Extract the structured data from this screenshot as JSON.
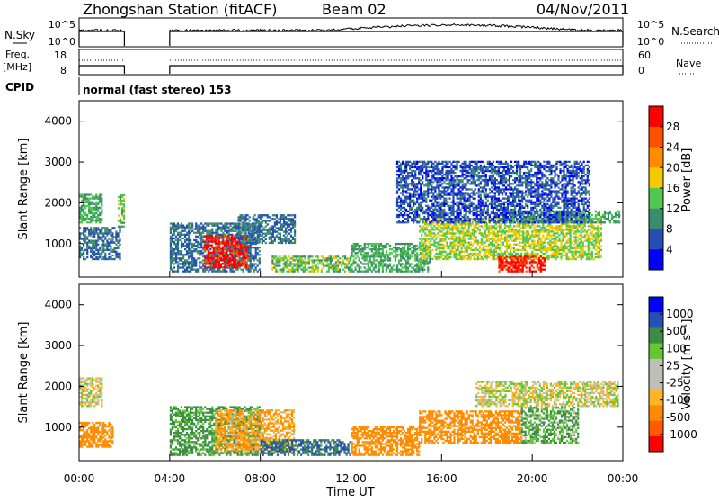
{
  "header": {
    "station": "Zhongshan Station (fitACF)",
    "beam": "Beam 02",
    "date": "04/Nov/2011",
    "cpid_label": "CPID",
    "cpid_text": "normal (fast stereo) 153"
  },
  "top_panels": {
    "nsky_label": "N.Sky",
    "nsky_ticks": [
      "10^5",
      "10^0"
    ],
    "nsearch_label": "N.Search",
    "nsearch_ticks": [
      "10^5",
      "10^0"
    ],
    "freq_label_line1": "Freq.",
    "freq_label_line2": "[MHz]",
    "freq_ticks": [
      "18",
      "8"
    ],
    "nave_label": "Nave",
    "nave_ticks": [
      "60",
      "0"
    ],
    "operating_intervals_hours": [
      [
        0.0,
        2.0
      ],
      [
        4.0,
        24.0
      ]
    ]
  },
  "colors": {
    "power_scale": [
      "#0000ff",
      "#2850b4",
      "#3c8c6e",
      "#50c850",
      "#f5c800",
      "#ff8c00",
      "#ff5000",
      "#ff0000"
    ],
    "velocity_scale": [
      "#ff0000",
      "#ff5a00",
      "#ff8c00",
      "#ffb428",
      "#bebeb4",
      "#bebeb4",
      "#64c832",
      "#3c8c46",
      "#2850b4",
      "#0000ff"
    ],
    "ground_scatter": "#bebeb4"
  },
  "chart_data": [
    {
      "type": "heatmap",
      "name": "power",
      "ylabel": "Slant Range [km]",
      "ylim": [
        180,
        4500
      ],
      "yticks": [
        "4000",
        "3000",
        "2000",
        "1000"
      ],
      "xlim_hours": [
        0,
        24
      ],
      "colorbar_label": "Power [dB]",
      "colorbar_ticks": [
        "28",
        "24",
        "20",
        "16",
        "12",
        "8",
        "4"
      ],
      "colorbar_range": [
        0,
        32
      ],
      "regions": [
        {
          "x": [
            0.0,
            1.0
          ],
          "y": [
            1500,
            2200
          ],
          "v": 12
        },
        {
          "x": [
            1.7,
            2.0
          ],
          "y": [
            1400,
            2200
          ],
          "v": 14
        },
        {
          "x": [
            0.0,
            1.8
          ],
          "y": [
            600,
            1400
          ],
          "v": 8
        },
        {
          "x": [
            4.0,
            8.0
          ],
          "y": [
            300,
            1500
          ],
          "v": 8
        },
        {
          "x": [
            5.5,
            7.5
          ],
          "y": [
            400,
            1200
          ],
          "v": 30
        },
        {
          "x": [
            7.0,
            9.5
          ],
          "y": [
            1000,
            1700
          ],
          "v": 8
        },
        {
          "x": [
            8.5,
            12.0
          ],
          "y": [
            300,
            700
          ],
          "v": 14
        },
        {
          "x": [
            12.0,
            15.5
          ],
          "y": [
            300,
            1000
          ],
          "v": 12
        },
        {
          "x": [
            15.0,
            23.0
          ],
          "y": [
            600,
            1600
          ],
          "v": 16
        },
        {
          "x": [
            18.5,
            20.5
          ],
          "y": [
            300,
            700
          ],
          "v": 30
        },
        {
          "x": [
            19.0,
            23.8
          ],
          "y": [
            1500,
            1800
          ],
          "v": 12
        },
        {
          "x": [
            14.0,
            22.5
          ],
          "y": [
            1500,
            3000
          ],
          "v": 6
        }
      ]
    },
    {
      "type": "heatmap",
      "name": "velocity",
      "xlabel": "Time UT",
      "ylabel": "Slant Range [km]",
      "ylim": [
        180,
        4500
      ],
      "yticks": [
        "4000",
        "3000",
        "2000",
        "1000"
      ],
      "xticks": [
        "00:00",
        "04:00",
        "08:00",
        "12:00",
        "16:00",
        "20:00",
        "00:00"
      ],
      "xlim_hours": [
        0,
        24
      ],
      "colorbar_label": "Velocity [m s⁻¹]",
      "colorbar_ticks": [
        "1000",
        "500",
        "100",
        "25",
        "-25",
        "-100",
        "-500",
        "-1000"
      ],
      "regions": [
        {
          "x": [
            0.0,
            1.0
          ],
          "y": [
            1500,
            2200
          ],
          "v": 0
        },
        {
          "x": [
            0.0,
            1.5
          ],
          "y": [
            500,
            1100
          ],
          "v": -300
        },
        {
          "x": [
            4.0,
            8.0
          ],
          "y": [
            300,
            1500
          ],
          "v": 150
        },
        {
          "x": [
            6.0,
            9.5
          ],
          "y": [
            400,
            1400
          ],
          "v": -100
        },
        {
          "x": [
            8.0,
            12.0
          ],
          "y": [
            300,
            700
          ],
          "v": 500
        },
        {
          "x": [
            12.0,
            15.0
          ],
          "y": [
            300,
            1000
          ],
          "v": -300
        },
        {
          "x": [
            15.0,
            19.5
          ],
          "y": [
            600,
            1400
          ],
          "v": -400
        },
        {
          "x": [
            19.5,
            22.0
          ],
          "y": [
            600,
            1500
          ],
          "v": 100
        },
        {
          "x": [
            17.5,
            23.8
          ],
          "y": [
            1500,
            2100
          ],
          "v": 0
        }
      ]
    }
  ]
}
